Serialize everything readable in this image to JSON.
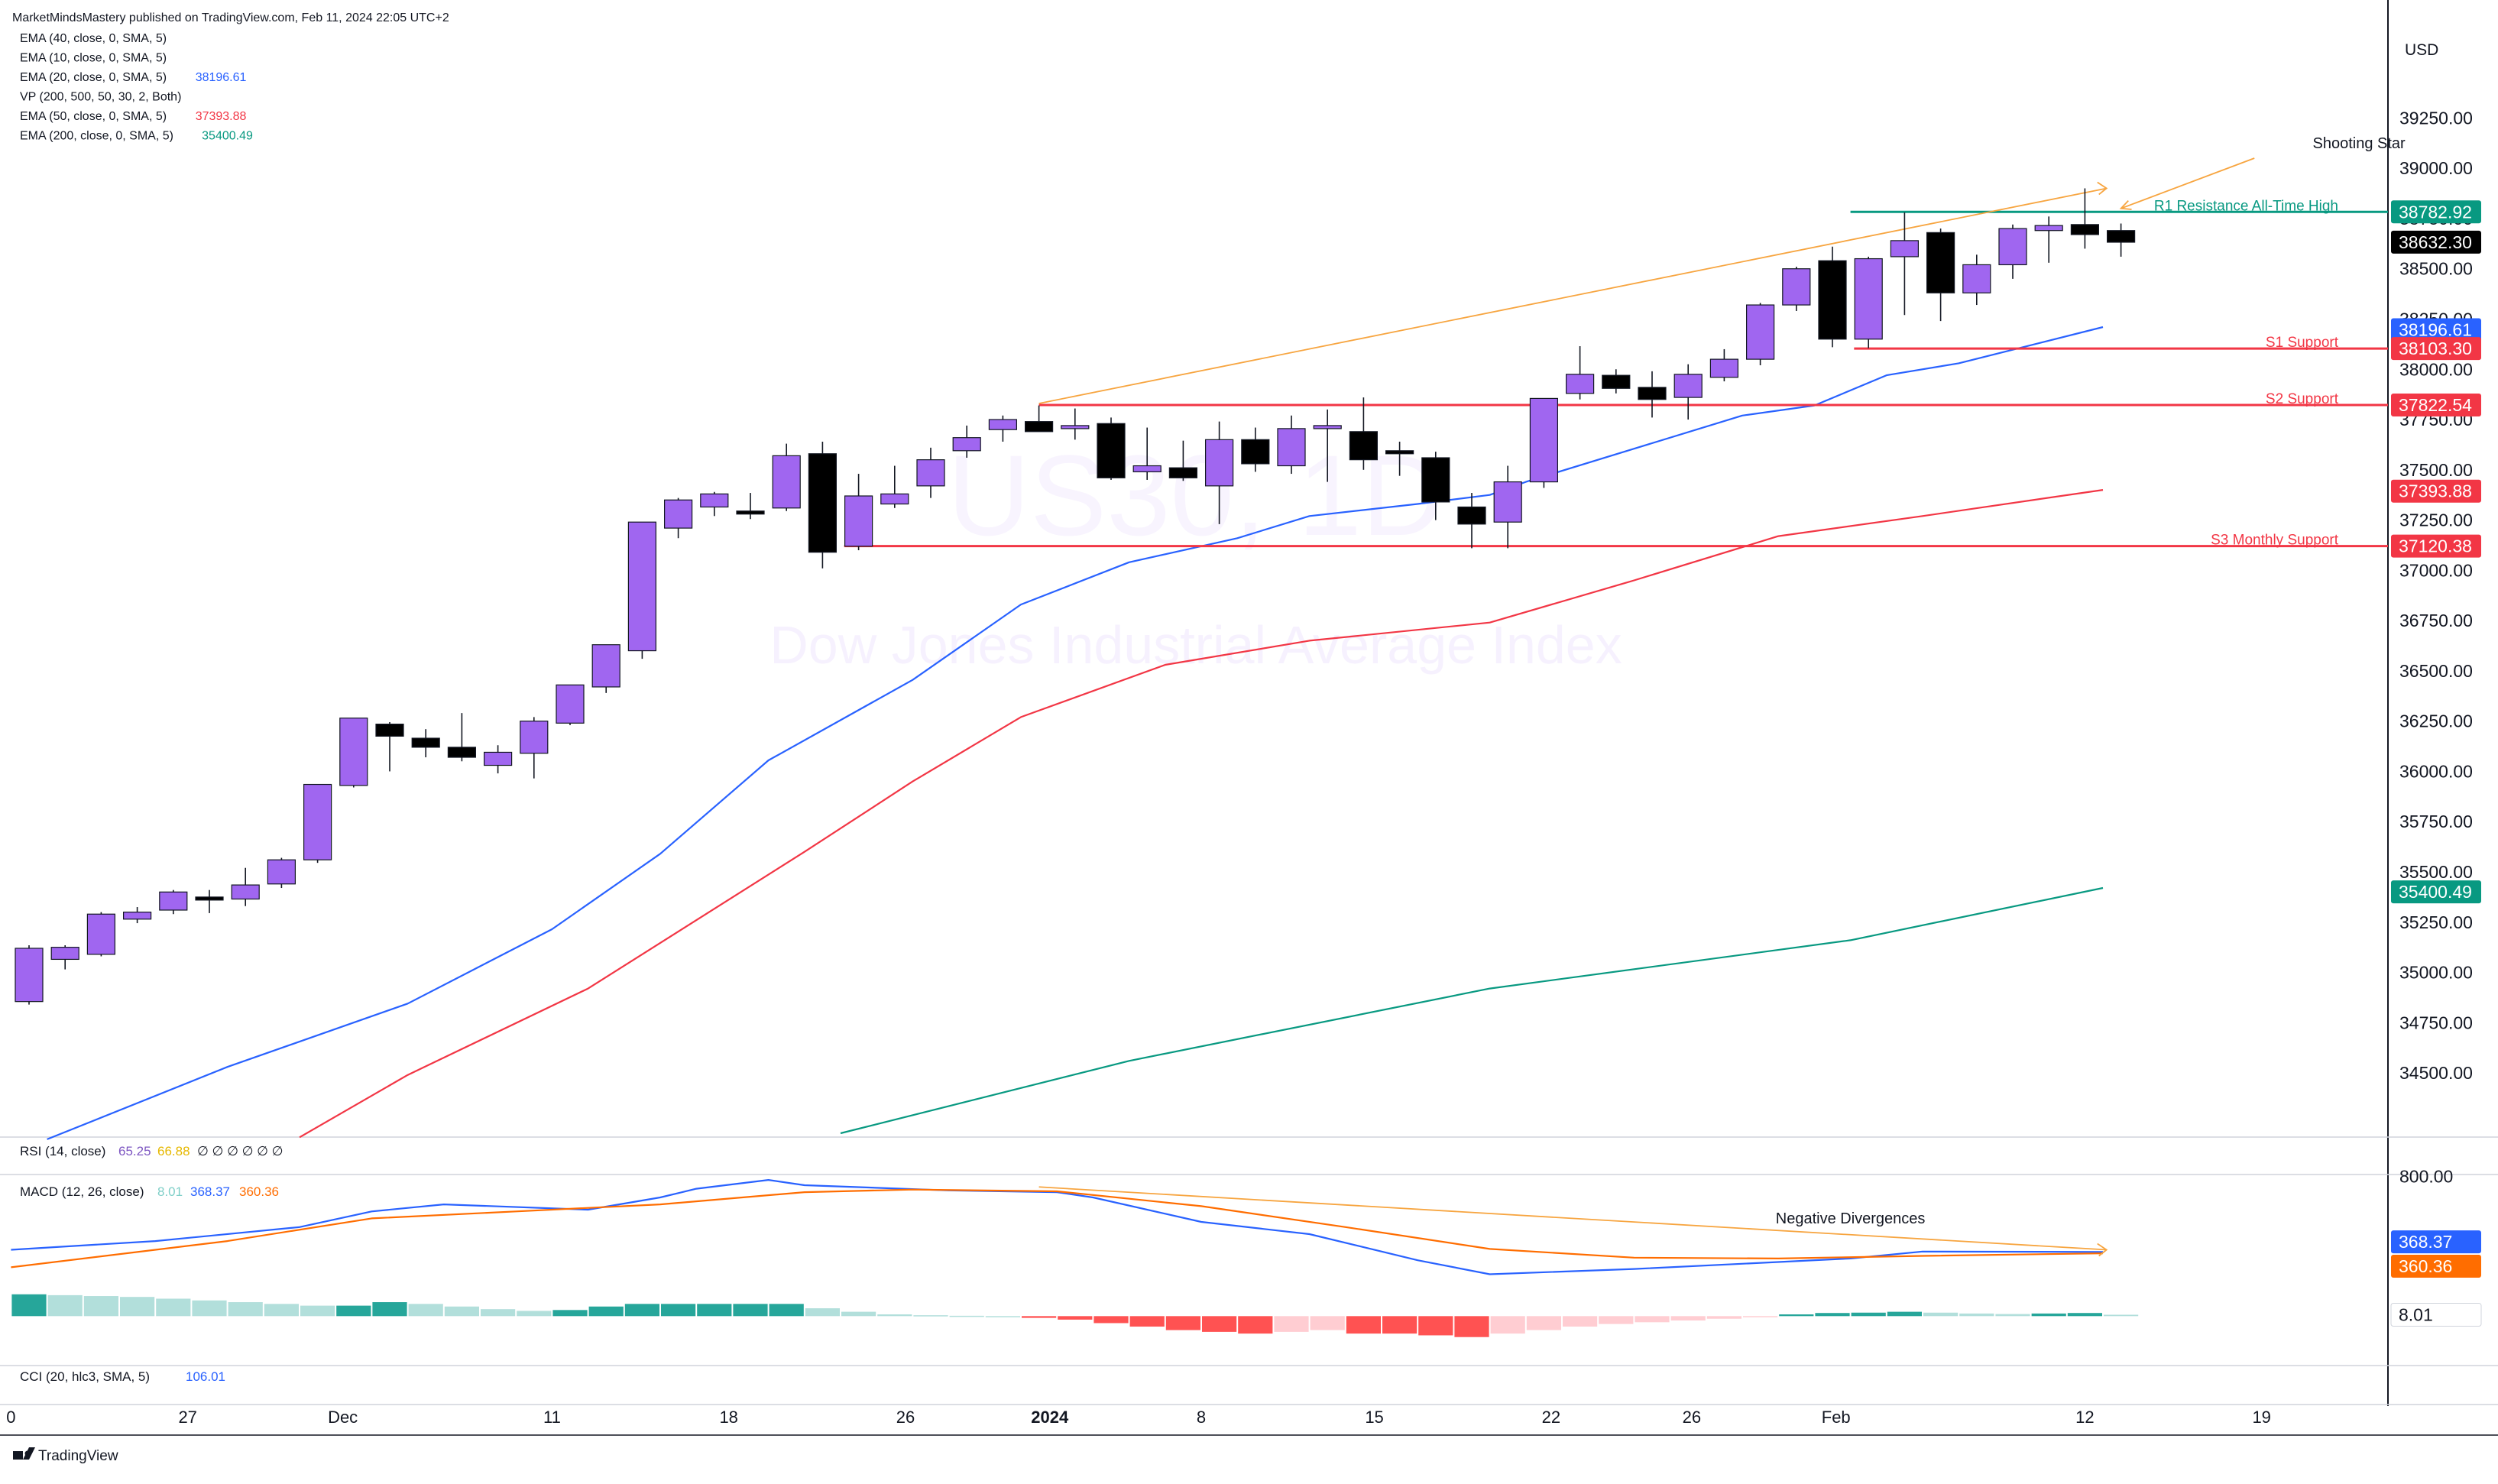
{
  "header": {
    "publisher": "MarketMindsMastery published on TradingView.com, Feb 11, 2024 22:05 UTC+2"
  },
  "indicators": [
    {
      "label": "EMA (40, close, 0, SMA, 5)",
      "value": "",
      "color": "#131722"
    },
    {
      "label": "EMA (10, close, 0, SMA, 5)",
      "value": "",
      "color": "#131722"
    },
    {
      "label": "EMA (20, close, 0, SMA, 5)",
      "value": "38196.61",
      "color": "#2962ff"
    },
    {
      "label": "VP (200, 500, 50, 30, 2, Both)",
      "value": "",
      "color": "#131722"
    },
    {
      "label": "EMA (50, close, 0, SMA, 5)",
      "value": "37393.88",
      "color": "#f23645"
    },
    {
      "label": "EMA (200, close, 0, SMA, 5)",
      "value": "35400.49",
      "color": "#089981"
    }
  ],
  "watermark": {
    "symbol": "US30, 1D",
    "name": "Dow Jones Industrial Average Index"
  },
  "currency": "USD",
  "colors": {
    "bull": "#a066f0",
    "bear": "#000000",
    "ema20": "#2962ff",
    "ema50": "#f23645",
    "ema200": "#089981",
    "support": "#f23645",
    "resistance": "#089981",
    "trendline": "#f7a540",
    "macd_line": "#2962ff",
    "signal_line": "#ff6d00",
    "last_price": "#000000"
  },
  "chart_data": [
    {
      "type": "candlestick",
      "ylim": [
        34200,
        39700
      ],
      "y_ticks": [
        34500,
        34750,
        35000,
        35250,
        35500,
        35750,
        36000,
        36250,
        36500,
        36750,
        37000,
        37250,
        37500,
        37750,
        38000,
        38250,
        38500,
        38750,
        39000,
        39250
      ],
      "y_tick_labels": [
        "34500.00",
        "34750.00",
        "35000.00",
        "35250.00",
        "35500.00",
        "35750.00",
        "36000.00",
        "36250.00",
        "36500.00",
        "36750.00",
        "37000.00",
        "37250.00",
        "37500.00",
        "37750.00",
        "38000.00",
        "38250.00",
        "38500.00",
        "38750.00",
        "39000.00",
        "39250.00"
      ],
      "x_labels": [
        {
          "bar": -0.5,
          "text": "0"
        },
        {
          "bar": 4.4,
          "text": "27"
        },
        {
          "bar": 8.7,
          "text": "Dec"
        },
        {
          "bar": 14.5,
          "text": "11"
        },
        {
          "bar": 19.4,
          "text": "18"
        },
        {
          "bar": 24.3,
          "text": "26"
        },
        {
          "bar": 28.3,
          "text": "2024"
        },
        {
          "bar": 32.5,
          "text": "8"
        },
        {
          "bar": 37.3,
          "text": "15"
        },
        {
          "bar": 42.2,
          "text": "22"
        },
        {
          "bar": 46.1,
          "text": "26"
        },
        {
          "bar": 50.1,
          "text": "Feb"
        },
        {
          "bar": 57.0,
          "text": "12"
        },
        {
          "bar": 61.9,
          "text": "19"
        }
      ],
      "candles": [
        [
          34855,
          35135,
          34840,
          35120
        ],
        [
          35065,
          35135,
          35015,
          35125
        ],
        [
          35090,
          35300,
          35080,
          35290
        ],
        [
          35265,
          35325,
          35245,
          35300
        ],
        [
          35310,
          35410,
          35290,
          35400
        ],
        [
          35375,
          35410,
          35295,
          35360
        ],
        [
          35365,
          35520,
          35330,
          35435
        ],
        [
          35440,
          35570,
          35420,
          35560
        ],
        [
          35560,
          35930,
          35545,
          35935
        ],
        [
          35930,
          36260,
          35920,
          36265
        ],
        [
          36235,
          36245,
          36000,
          36175
        ],
        [
          36165,
          36210,
          36070,
          36120
        ],
        [
          36120,
          36290,
          36050,
          36070
        ],
        [
          36030,
          36130,
          35990,
          36095
        ],
        [
          36090,
          36270,
          35965,
          36250
        ],
        [
          36240,
          36420,
          36230,
          36430
        ],
        [
          36420,
          36610,
          36390,
          36630
        ],
        [
          36600,
          37240,
          36560,
          37240
        ],
        [
          37210,
          37360,
          37160,
          37350
        ],
        [
          37315,
          37390,
          37270,
          37380
        ],
        [
          37295,
          37385,
          37255,
          37290
        ],
        [
          37310,
          37630,
          37295,
          37570
        ],
        [
          37580,
          37640,
          37010,
          37090
        ],
        [
          37120,
          37480,
          37100,
          37370
        ],
        [
          37330,
          37520,
          37310,
          37380
        ],
        [
          37420,
          37610,
          37360,
          37550
        ],
        [
          37595,
          37720,
          37560,
          37660
        ],
        [
          37700,
          37770,
          37640,
          37750
        ],
        [
          37740,
          37820,
          37710,
          37690
        ],
        [
          37715,
          37805,
          37650,
          37720
        ],
        [
          37730,
          37760,
          37450,
          37460
        ],
        [
          37490,
          37710,
          37450,
          37520
        ],
        [
          37510,
          37645,
          37445,
          37460
        ],
        [
          37420,
          37740,
          37230,
          37650
        ],
        [
          37650,
          37710,
          37490,
          37530
        ],
        [
          37520,
          37770,
          37480,
          37705
        ],
        [
          37715,
          37800,
          37440,
          37720
        ],
        [
          37690,
          37860,
          37500,
          37550
        ],
        [
          37595,
          37640,
          37470,
          37585
        ],
        [
          37560,
          37590,
          37250,
          37340
        ],
        [
          37315,
          37385,
          37110,
          37230
        ],
        [
          37240,
          37520,
          37110,
          37440
        ],
        [
          37440,
          37850,
          37410,
          37855
        ],
        [
          37880,
          38115,
          37850,
          37975
        ],
        [
          37970,
          38000,
          37880,
          37905
        ],
        [
          37910,
          37990,
          37760,
          37850
        ],
        [
          37860,
          38025,
          37750,
          37975
        ],
        [
          37960,
          38100,
          37940,
          38050
        ],
        [
          38050,
          38330,
          38020,
          38320
        ],
        [
          38320,
          38510,
          38290,
          38500
        ],
        [
          38540,
          38610,
          38110,
          38150
        ],
        [
          38150,
          38560,
          38105,
          38550
        ],
        [
          38560,
          38780,
          38270,
          38640
        ],
        [
          38680,
          38700,
          38240,
          38380
        ],
        [
          38380,
          38570,
          38320,
          38520
        ],
        [
          38520,
          38720,
          38450,
          38700
        ],
        [
          38690,
          38760,
          38530,
          38715
        ],
        [
          38720,
          38900,
          38600,
          38670
        ],
        [
          38690,
          38725,
          38560,
          38632
        ]
      ],
      "ema20": [
        [
          0.5,
          34170
        ],
        [
          5.5,
          34530
        ],
        [
          10.5,
          34845
        ],
        [
          14.5,
          35215
        ],
        [
          17.5,
          35590
        ],
        [
          20.5,
          36055
        ],
        [
          24.5,
          36455
        ],
        [
          27.5,
          36830
        ],
        [
          30.5,
          37040
        ],
        [
          33.5,
          37160
        ],
        [
          35.5,
          37270
        ],
        [
          38.5,
          37330
        ],
        [
          40.5,
          37375
        ],
        [
          41.5,
          37440
        ],
        [
          44.5,
          37605
        ],
        [
          47.5,
          37770
        ],
        [
          49.5,
          37820
        ],
        [
          51.5,
          37970
        ],
        [
          53.5,
          38030
        ],
        [
          57.5,
          38210
        ]
      ],
      "ema50": [
        [
          7.5,
          34180
        ],
        [
          10.5,
          34490
        ],
        [
          15.5,
          34920
        ],
        [
          21.5,
          35600
        ],
        [
          24.5,
          35950
        ],
        [
          27.5,
          36270
        ],
        [
          31.5,
          36530
        ],
        [
          35.5,
          36650
        ],
        [
          40.5,
          36740
        ],
        [
          44.5,
          36950
        ],
        [
          48.5,
          37170
        ],
        [
          52.5,
          37270
        ],
        [
          57.5,
          37400
        ]
      ],
      "ema200": [
        [
          22.5,
          34200
        ],
        [
          30.5,
          34560
        ],
        [
          40.5,
          34920
        ],
        [
          50.5,
          35160
        ],
        [
          57.5,
          35420
        ]
      ],
      "annotations": [
        {
          "text": "Shooting Star",
          "bar": 64.6,
          "price": 39100
        },
        {
          "text": "R1 Resistance All-Time High",
          "bar": 63.7,
          "price": 38782.92
        }
      ],
      "levels": [
        {
          "label": "R1 Resistance All-Time High",
          "value": 38782.92,
          "value_text": "38782.92",
          "from_bar": 50.5,
          "kind": "resistance"
        },
        {
          "label": "S1 Support",
          "value": 38103.3,
          "value_text": "38103.30",
          "from_bar": 50.6,
          "kind": "support"
        },
        {
          "label": "S2 Support",
          "value": 37822.54,
          "value_text": "37822.54",
          "from_bar": 28.0,
          "kind": "support"
        },
        {
          "label": "S3 Monthly Support",
          "value": 37120.38,
          "value_text": "37120.38",
          "from_bar": 22.6,
          "kind": "support"
        }
      ],
      "trendline": {
        "from": [
          28.0,
          37830
        ],
        "to": [
          57.6,
          38900
        ]
      },
      "shooting_star_arrow": {
        "from": [
          61.7,
          39050
        ],
        "to": [
          58.0,
          38800
        ]
      },
      "price_tags": [
        {
          "value": 38782.92,
          "text": "38782.92",
          "color": "#089981"
        },
        {
          "value": 38632.3,
          "text": "38632.30",
          "color": "#000000"
        },
        {
          "value": 38196.61,
          "text": "38196.61",
          "color": "#2962ff"
        },
        {
          "value": 38103.3,
          "text": "38103.30",
          "color": "#f23645"
        },
        {
          "value": 37822.54,
          "text": "37822.54",
          "color": "#f23645"
        },
        {
          "value": 37393.88,
          "text": "37393.88",
          "color": "#f23645"
        },
        {
          "value": 37120.38,
          "text": "37120.38",
          "color": "#f23645"
        },
        {
          "value": 35400.49,
          "text": "35400.49",
          "color": "#089981"
        }
      ]
    },
    {
      "type": "rsi",
      "title": "RSI (14, close)",
      "values": [
        "65.25",
        "66.88",
        "∅ ∅ ∅ ∅ ∅ ∅"
      ],
      "value_colors": [
        "#7e57c2",
        "#f9c74f",
        "#131722"
      ]
    },
    {
      "type": "macd",
      "title": "MACD (12, 26, close)",
      "values": [
        "8.01",
        "368.37",
        "360.36"
      ],
      "value_colors": [
        "#9fd8d4",
        "#2962ff",
        "#ff6d00"
      ],
      "ylim": [
        -270,
        820
      ],
      "y_tick_labels": [
        "800.00"
      ],
      "y_ticks": [
        800
      ],
      "macd": [
        [
          -0.5,
          380
        ],
        [
          3.5,
          430
        ],
        [
          7.5,
          510
        ],
        [
          9.5,
          600
        ],
        [
          11.5,
          640
        ],
        [
          15.5,
          610
        ],
        [
          17.5,
          680
        ],
        [
          18.5,
          730
        ],
        [
          20.5,
          780
        ],
        [
          21.5,
          750
        ],
        [
          25.5,
          720
        ],
        [
          28.5,
          710
        ],
        [
          29.5,
          680
        ],
        [
          32.5,
          540
        ],
        [
          35.5,
          470
        ],
        [
          38.5,
          320
        ],
        [
          40.5,
          240
        ],
        [
          44.5,
          270
        ],
        [
          48.5,
          310
        ],
        [
          50.5,
          330
        ],
        [
          52.5,
          370
        ],
        [
          57.5,
          368
        ]
      ],
      "signal": [
        [
          -0.5,
          280
        ],
        [
          5.5,
          430
        ],
        [
          9.5,
          560
        ],
        [
          13.5,
          600
        ],
        [
          17.5,
          640
        ],
        [
          21.5,
          710
        ],
        [
          24.5,
          725
        ],
        [
          28.5,
          715
        ],
        [
          32.5,
          630
        ],
        [
          36.5,
          510
        ],
        [
          40.5,
          385
        ],
        [
          44.5,
          335
        ],
        [
          48.5,
          330
        ],
        [
          52.5,
          345
        ],
        [
          57.5,
          360
        ]
      ],
      "histogram": [
        125,
        120,
        115,
        110,
        100,
        90,
        80,
        70,
        60,
        60,
        80,
        70,
        55,
        40,
        30,
        35,
        55,
        70,
        70,
        70,
        70,
        70,
        45,
        25,
        10,
        5,
        2,
        0,
        -10,
        -20,
        -40,
        -60,
        -80,
        -90,
        -100,
        -90,
        -80,
        -100,
        -100,
        -110,
        -120,
        -100,
        -80,
        -60,
        -45,
        -35,
        -25,
        -15,
        -5,
        10,
        18,
        20,
        25,
        20,
        15,
        12,
        15,
        18,
        8
      ],
      "hist_colors": {
        "pos_up": "#26a69a",
        "pos_down": "#b2dfdb",
        "neg_down": "#ff5252",
        "neg_up": "#ffcdd2"
      },
      "annotation": "Negative Divergences",
      "price_tags": [
        {
          "value": 368.37,
          "text": "368.37",
          "color": "#2962ff"
        },
        {
          "value": 360.36,
          "text": "360.36",
          "color": "#ff6d00"
        },
        {
          "value": 8.01,
          "text": "8.01",
          "color": "#ffffff"
        }
      ]
    },
    {
      "type": "cci",
      "title": "CCI (20, hlc3, SMA, 5)",
      "values": [
        "106.01"
      ],
      "value_colors": [
        "#2962ff"
      ]
    }
  ],
  "footer": {
    "brand": "TradingView"
  }
}
